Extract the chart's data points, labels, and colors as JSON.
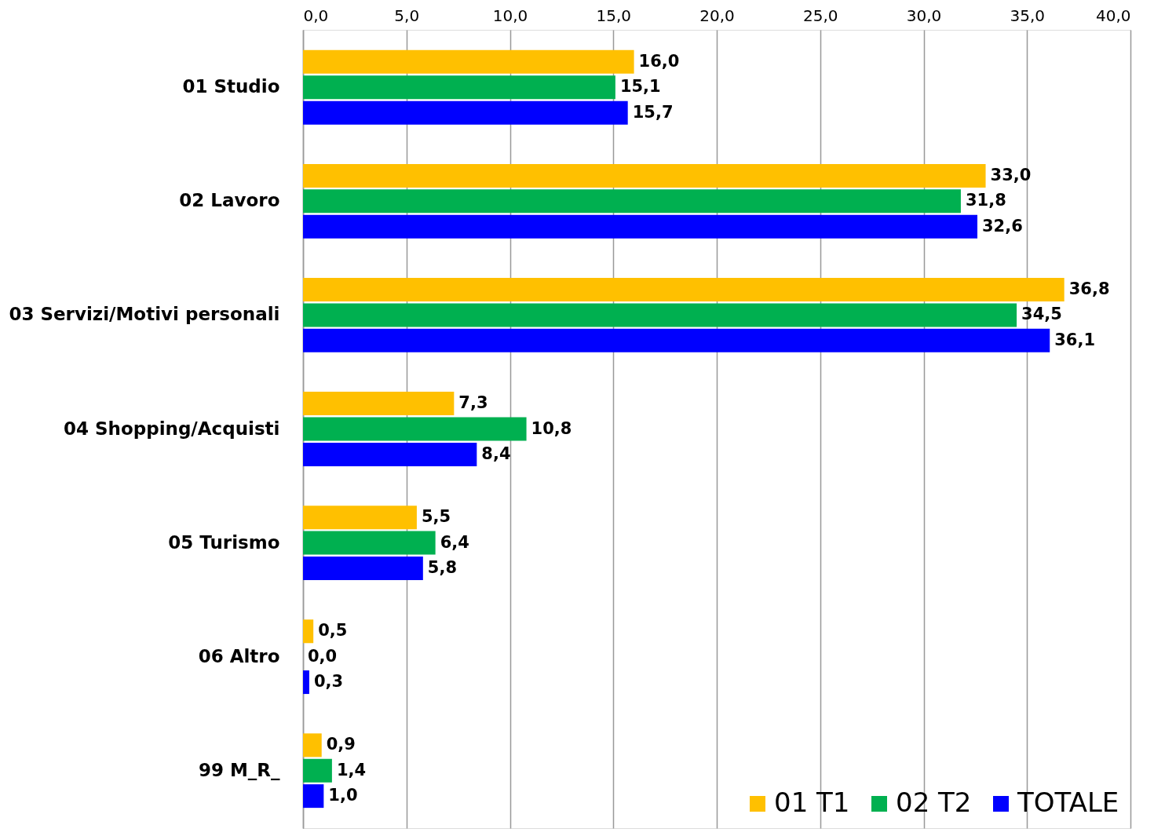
{
  "chart_data": {
    "type": "bar",
    "orientation": "horizontal",
    "categories": [
      "01 Studio",
      "02 Lavoro",
      "03 Servizi/Motivi personali",
      "04 Shopping/Acquisti",
      "05 Turismo",
      "06 Altro",
      "99 M_R_"
    ],
    "series": [
      {
        "name": "01 T1",
        "color": "#ffc000",
        "values": [
          16.0,
          33.0,
          36.8,
          7.3,
          5.5,
          0.5,
          0.9
        ],
        "value_labels": [
          "16,0",
          "33,0",
          "36,8",
          "7,3",
          "5,5",
          "0,5",
          "0,9"
        ]
      },
      {
        "name": "02 T2",
        "color": "#00b050",
        "values": [
          15.1,
          31.8,
          34.5,
          10.8,
          6.4,
          0.0,
          1.4
        ],
        "value_labels": [
          "15,1",
          "31,8",
          "34,5",
          "10,8",
          "6,4",
          "0,0",
          "1,4"
        ]
      },
      {
        "name": "TOTALE",
        "color": "#0000ff",
        "values": [
          15.7,
          32.6,
          36.1,
          8.4,
          5.8,
          0.3,
          1.0
        ],
        "value_labels": [
          "15,7",
          "32,6",
          "36,1",
          "8,4",
          "5,8",
          "0,3",
          "1,0"
        ]
      }
    ],
    "xlim": [
      0,
      40
    ],
    "xticks": [
      {
        "value": 0,
        "label": "0,0"
      },
      {
        "value": 5,
        "label": "5,0"
      },
      {
        "value": 10,
        "label": "10,0"
      },
      {
        "value": 15,
        "label": "15,0"
      },
      {
        "value": 20,
        "label": "20,0"
      },
      {
        "value": 25,
        "label": "25,0"
      },
      {
        "value": 30,
        "label": "30,0"
      },
      {
        "value": 35,
        "label": "35,0"
      },
      {
        "value": 40,
        "label": "40,0"
      }
    ],
    "grid": "x",
    "legend": "bottom right"
  }
}
